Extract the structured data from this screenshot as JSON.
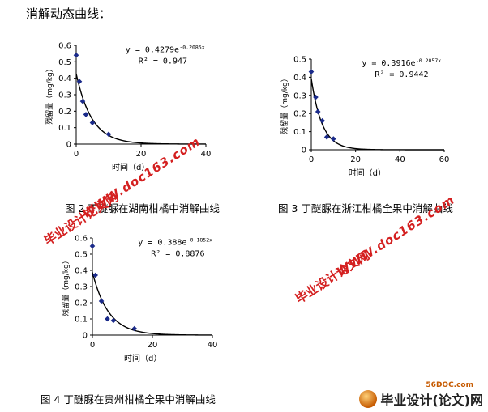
{
  "heading": "消解动态曲线：",
  "chart_data": [
    {
      "type": "scatter",
      "ylabel": "残留量（mg/kg）",
      "xlabel": "时间（d）",
      "xlim": [
        0,
        40
      ],
      "ylim": [
        0,
        0.6
      ],
      "xticks": [
        "0",
        "20",
        "40"
      ],
      "yticks": [
        "0",
        "0.1",
        "0.2",
        "0.3",
        "0.4",
        "0.5",
        "0.6"
      ],
      "equation": "y = 0.4279e",
      "equation_exp": "-0.2085x",
      "r2": "R² = 0.947",
      "fit": {
        "a": 0.4279,
        "k": 0.2085
      },
      "points": [
        [
          0,
          0.54
        ],
        [
          1,
          0.38
        ],
        [
          2,
          0.26
        ],
        [
          3,
          0.18
        ],
        [
          5,
          0.13
        ],
        [
          10,
          0.06
        ]
      ],
      "caption": "图 2 丁醚脲在湖南柑橘中消解曲线"
    },
    {
      "type": "scatter",
      "ylabel": "残留量（mg/kg）",
      "xlabel": "时间（d）",
      "xlim": [
        0,
        60
      ],
      "ylim": [
        0,
        0.5
      ],
      "xticks": [
        "0",
        "20",
        "40",
        "60"
      ],
      "yticks": [
        "0",
        "0.1",
        "0.2",
        "0.3",
        "0.4",
        "0.5"
      ],
      "equation": "y = 0.3916e",
      "equation_exp": "-0.2057x",
      "r2": "R² = 0.9442",
      "fit": {
        "a": 0.3916,
        "k": 0.2057
      },
      "points": [
        [
          0,
          0.43
        ],
        [
          2,
          0.29
        ],
        [
          3,
          0.21
        ],
        [
          5,
          0.16
        ],
        [
          7,
          0.07
        ],
        [
          10,
          0.06
        ]
      ],
      "caption": "图 3 丁醚脲在浙江柑橘全果中消解曲线"
    },
    {
      "type": "scatter",
      "ylabel": "残留量（mg/kg）",
      "xlabel": "时间（d）",
      "xlim": [
        0,
        40
      ],
      "ylim": [
        0,
        0.6
      ],
      "xticks": [
        "0",
        "20",
        "40"
      ],
      "yticks": [
        "0",
        "0.1",
        "0.2",
        "0.3",
        "0.4",
        "0.5",
        "0.6"
      ],
      "equation": "y = 0.388e",
      "equation_exp": "-0.1852x",
      "r2": "R² = 0.8876",
      "fit": {
        "a": 0.388,
        "k": 0.1852
      },
      "points": [
        [
          0,
          0.55
        ],
        [
          1,
          0.37
        ],
        [
          3,
          0.21
        ],
        [
          5,
          0.1
        ],
        [
          7,
          0.09
        ],
        [
          14,
          0.04
        ]
      ],
      "caption": "图 4 丁醚脲在贵州柑橘全果中消解曲线"
    }
  ],
  "watermarks": {
    "cn": "毕业设计论文网",
    "url": "WWW.doc163.com"
  },
  "footer": {
    "site": "56DOC.com",
    "logo_text": "毕业设计(论文)网"
  }
}
